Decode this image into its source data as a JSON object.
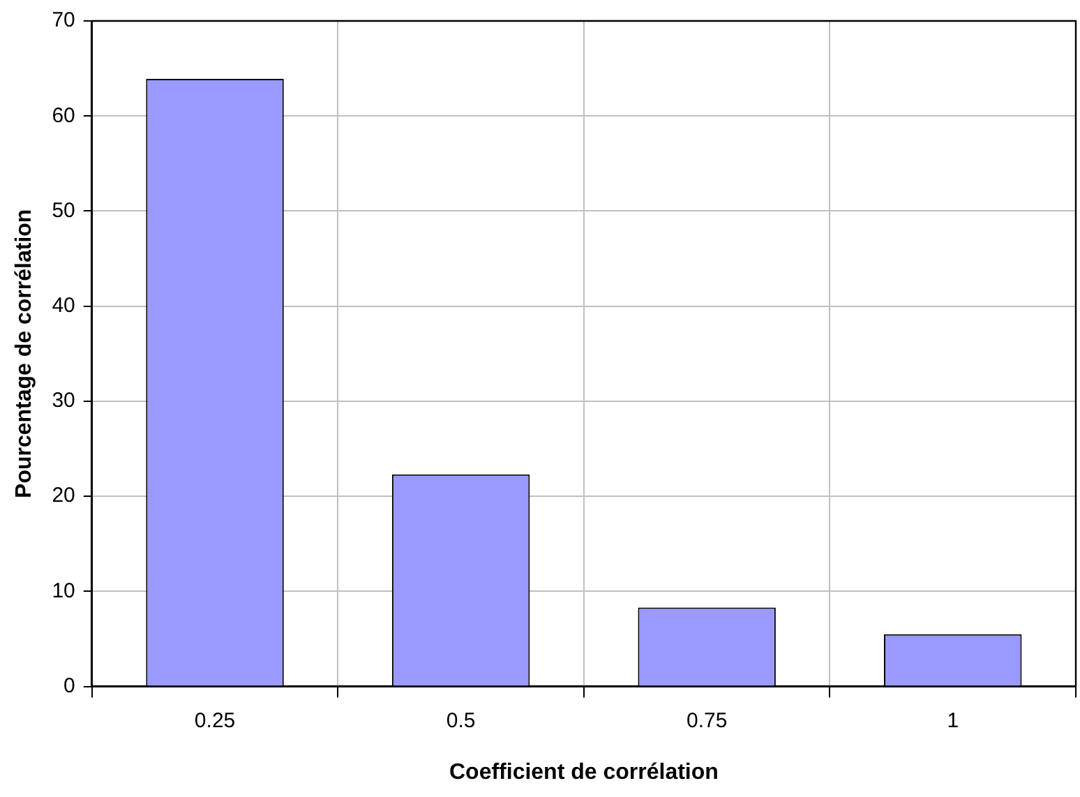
{
  "chart_data": {
    "type": "bar",
    "xlabel": "Coefficient de corrélation",
    "ylabel": "Pourcentage de corrélation",
    "categories": [
      "0.25",
      "0.5",
      "0.75",
      "1"
    ],
    "values": [
      63.9,
      22.3,
      8.3,
      5.5
    ],
    "color": "#9999ff",
    "ylim": [
      0,
      70
    ],
    "yticks": [
      0,
      10,
      20,
      30,
      40,
      50,
      60,
      70
    ],
    "grid": true,
    "legend": false
  }
}
